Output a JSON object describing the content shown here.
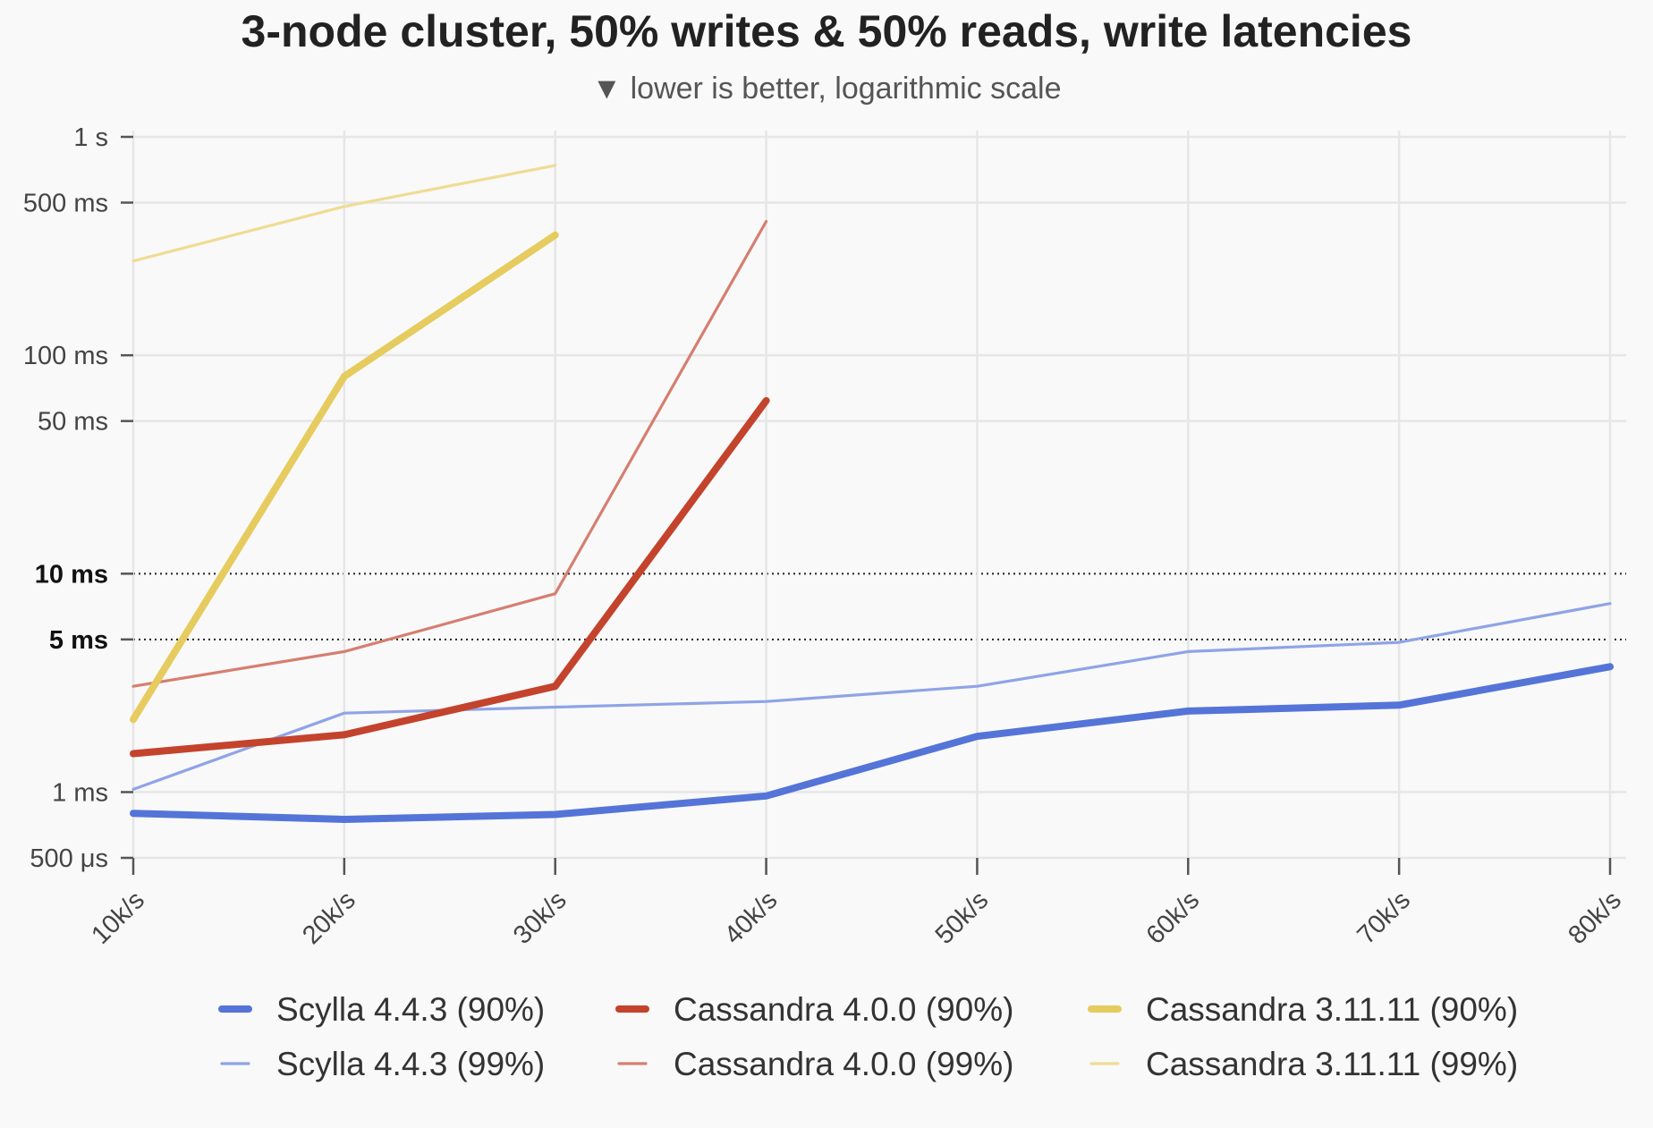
{
  "chart_data": {
    "type": "line",
    "title": "3-node cluster, 50% writes & 50% reads, write latencies",
    "subtitle": "▼ lower is better, logarithmic scale",
    "xlabel": "",
    "ylabel": "",
    "y_scale": "log",
    "ylim_ms": [
      0.5,
      1000
    ],
    "grid": true,
    "legend_position": "bottom",
    "categories": [
      "10k/s",
      "20k/s",
      "30k/s",
      "40k/s",
      "50k/s",
      "60k/s",
      "70k/s",
      "80k/s"
    ],
    "y_ticks": [
      {
        "value_ms": 1000,
        "label": "1 s",
        "emphasis": false
      },
      {
        "value_ms": 500,
        "label": "500 ms",
        "emphasis": false
      },
      {
        "value_ms": 100,
        "label": "100 ms",
        "emphasis": false
      },
      {
        "value_ms": 50,
        "label": "50 ms",
        "emphasis": false
      },
      {
        "value_ms": 10,
        "label": "10 ms",
        "emphasis": true
      },
      {
        "value_ms": 5,
        "label": "5 ms",
        "emphasis": true
      },
      {
        "value_ms": 1,
        "label": "1 ms",
        "emphasis": false
      },
      {
        "value_ms": 0.5,
        "label": "500 μs",
        "emphasis": false
      }
    ],
    "series": [
      {
        "name": "Scylla 4.4.3 (90%)",
        "color": "#5474d8",
        "style": "thick",
        "values": [
          0.8,
          0.75,
          0.79,
          0.96,
          1.8,
          2.35,
          2.5,
          3.75
        ]
      },
      {
        "name": "Cassandra 4.0.0 (90%)",
        "color": "#c4432c",
        "style": "thick",
        "values": [
          1.5,
          1.83,
          3.05,
          62,
          null,
          null,
          null,
          null
        ]
      },
      {
        "name": "Cassandra 3.11.11 (90%)",
        "color": "#e6cb5e",
        "style": "thick",
        "values": [
          2.15,
          80,
          355,
          null,
          null,
          null,
          null,
          null
        ]
      },
      {
        "name": "Scylla 4.4.3 (99%)",
        "color": "#8fa4e6",
        "style": "thin",
        "values": [
          1.03,
          2.3,
          2.45,
          2.6,
          3.05,
          4.4,
          4.85,
          7.3
        ]
      },
      {
        "name": "Cassandra 4.0.0 (99%)",
        "color": "#d67e70",
        "style": "thin",
        "values": [
          3.05,
          4.4,
          8.1,
          410,
          null,
          null,
          null,
          null
        ]
      },
      {
        "name": "Cassandra 3.11.11 (99%)",
        "color": "#efdc93",
        "style": "thin",
        "values": [
          270,
          480,
          740,
          null,
          null,
          null,
          null,
          null
        ]
      }
    ]
  }
}
